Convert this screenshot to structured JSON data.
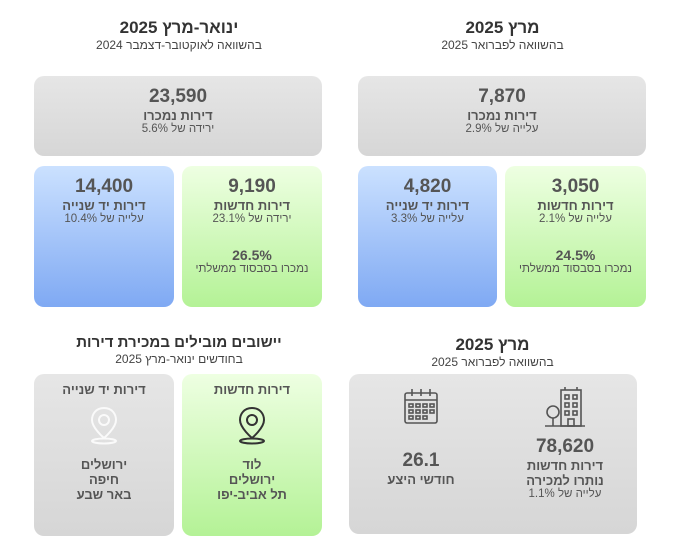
{
  "right_top": {
    "title": "מרץ 2025",
    "subtitle": "בהשוואה לפברואר 2025",
    "sold": {
      "value": "7,870",
      "label": "דירות נמכרו",
      "change": "עלייה של 2.9%"
    },
    "new": {
      "value": "3,050",
      "label": "דירות חדשות",
      "change": "עלייה של 2.1%",
      "share": "24.5%",
      "share_label": "נמכרו בסבסוד ממשלתי"
    },
    "second": {
      "value": "4,820",
      "label": "דירות יד שנייה",
      "change": "עלייה של 3.3%"
    }
  },
  "left_top": {
    "title": "ינואר-מרץ 2025",
    "subtitle": "בהשוואה לאוקטובר-דצמבר 2024",
    "sold": {
      "value": "23,590",
      "label": "דירות נמכרו",
      "change": "ירידה של 5.6%"
    },
    "new": {
      "value": "9,190",
      "label": "דירות חדשות",
      "change": "ירידה של 23.1%",
      "share": "26.5%",
      "share_label": "נמכרו בסבסוד ממשלתי"
    },
    "second": {
      "value": "14,400",
      "label": "דירות יד שנייה",
      "change": "עלייה של 10.4%"
    }
  },
  "right_bottom": {
    "title": "מרץ 2025",
    "subtitle": "בהשוואה לפברואר 2025",
    "unsold": {
      "value": "78,620",
      "label1": "דירות חדשות",
      "label2": "נותרו למכירה",
      "change": "עלייה של 1.1%",
      "icon": "building-icon"
    },
    "supply": {
      "value": "26.1",
      "label": "חודשי היצע",
      "icon": "calendar-icon"
    }
  },
  "left_bottom": {
    "title": "יישובים מובילים במכירת דירות",
    "subtitle": "בחודשים ינואר-מרץ 2025",
    "new": {
      "label": "דירות חדשות",
      "cities": [
        "לוד",
        "ירושלים",
        "תל אביב-יפו"
      ],
      "icon": "location-pin-icon"
    },
    "second": {
      "label": "דירות יד שנייה",
      "cities": [
        "ירושלים",
        "חיפה",
        "באר שבע"
      ],
      "icon": "location-pin-icon"
    }
  },
  "colors": {
    "gray": "#dcdcdc",
    "green": "#c6f5ae",
    "blue": "#9cbff7"
  }
}
